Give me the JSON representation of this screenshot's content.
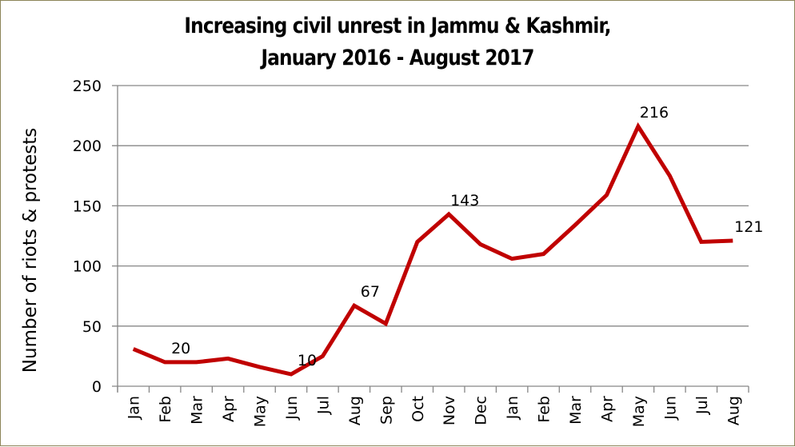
{
  "chart_data": {
    "type": "line",
    "title": "Increasing civil unrest in Jammu & Kashmir, January 2016 - August 2017",
    "title_lines": [
      "Increasing civil unrest in Jammu & Kashmir,",
      "January 2016 - August 2017"
    ],
    "xlabel": "",
    "ylabel": "Number of riots & protests",
    "ylim": [
      0,
      250
    ],
    "yticks": [
      0,
      50,
      100,
      150,
      200,
      250
    ],
    "grid": true,
    "legend": "none",
    "categories": [
      "Jan",
      "Feb",
      "Mar",
      "Apr",
      "May",
      "Jun",
      "Jul",
      "Aug",
      "Sep",
      "Oct",
      "Nov",
      "Dec",
      "Jan",
      "Feb",
      "Mar",
      "Apr",
      "May",
      "Jun",
      "Jul",
      "Aug"
    ],
    "series": [
      {
        "name": "Riots & protests",
        "color": "#c00000",
        "values": [
          31,
          20,
          20,
          23,
          16,
          10,
          25,
          67,
          52,
          120,
          143,
          118,
          106,
          110,
          134,
          159,
          216,
          175,
          120,
          121
        ]
      }
    ],
    "data_labels": [
      {
        "index": 1,
        "text": "20"
      },
      {
        "index": 5,
        "text": "10"
      },
      {
        "index": 7,
        "text": "67"
      },
      {
        "index": 10,
        "text": "143"
      },
      {
        "index": 16,
        "text": "216"
      },
      {
        "index": 19,
        "text": "121"
      }
    ]
  },
  "colors": {
    "line": "#c00000",
    "grid": "#878787",
    "border": "#8c8458"
  }
}
